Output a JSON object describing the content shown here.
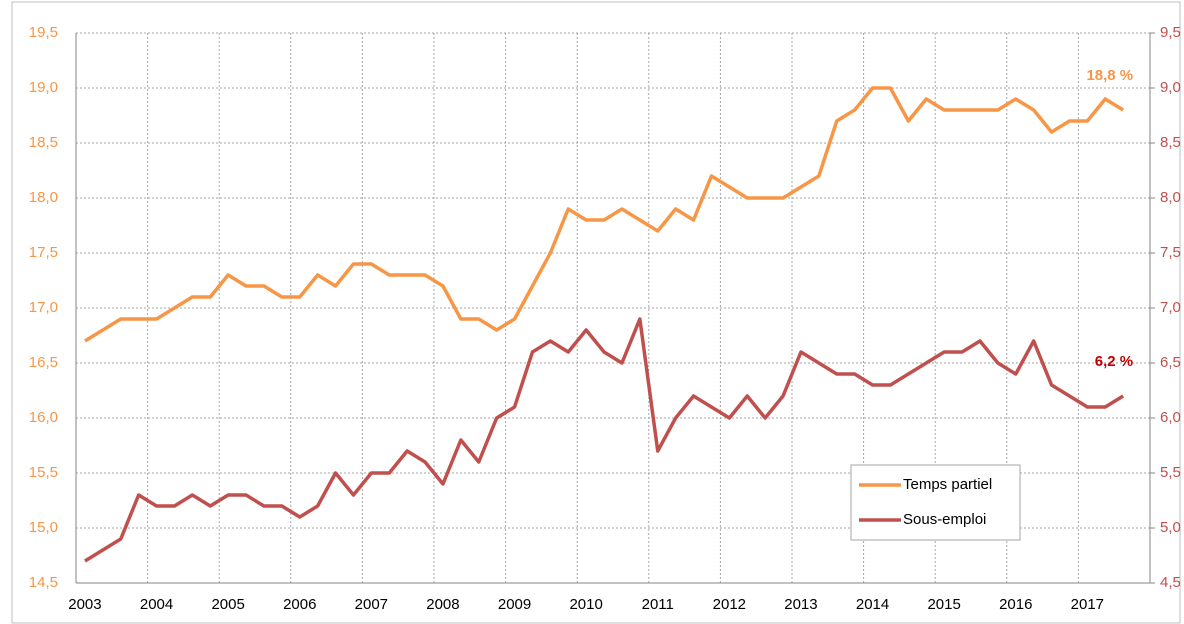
{
  "chart_data": {
    "type": "line",
    "categories": [
      "2003",
      null,
      null,
      null,
      "2004",
      null,
      null,
      null,
      "2005",
      null,
      null,
      null,
      "2006",
      null,
      null,
      null,
      "2007",
      null,
      null,
      null,
      "2008",
      null,
      null,
      null,
      "2009",
      null,
      null,
      null,
      "2010",
      null,
      null,
      null,
      "2011",
      null,
      null,
      null,
      "2012",
      null,
      null,
      null,
      "2013",
      null,
      null,
      null,
      "2014",
      null,
      null,
      null,
      "2015",
      null,
      null,
      null,
      "2016",
      null,
      null,
      null,
      "2017",
      null,
      null
    ],
    "series": [
      {
        "name": "Temps partiel",
        "color": "#f79646",
        "axis": "y",
        "values": [
          16.7,
          16.8,
          16.9,
          16.9,
          16.9,
          17.0,
          17.1,
          17.1,
          17.3,
          17.2,
          17.2,
          17.1,
          17.1,
          17.3,
          17.2,
          17.4,
          17.4,
          17.3,
          17.3,
          17.3,
          17.2,
          16.9,
          16.9,
          16.8,
          16.9,
          17.2,
          17.5,
          17.9,
          17.8,
          17.8,
          17.9,
          17.8,
          17.7,
          17.9,
          17.8,
          18.2,
          18.1,
          18.0,
          18.0,
          18.0,
          18.1,
          18.2,
          18.7,
          18.8,
          19.0,
          19.0,
          18.7,
          18.9,
          18.8,
          18.8,
          18.8,
          18.8,
          18.9,
          18.8,
          18.6,
          18.7,
          18.7,
          18.9,
          18.8
        ],
        "value_labels": [
          null,
          null,
          null,
          null,
          null,
          null,
          null,
          null,
          null,
          null,
          null,
          null,
          null,
          null,
          null,
          null,
          null,
          null,
          null,
          null,
          null,
          null,
          null,
          null,
          null,
          null,
          null,
          null,
          null,
          null,
          null,
          null,
          null,
          null,
          null,
          null,
          null,
          null,
          null,
          null,
          null,
          null,
          null,
          null,
          null,
          null,
          null,
          null,
          null,
          null,
          null,
          null,
          null,
          null,
          null,
          null,
          null,
          null,
          "18,8 %"
        ],
        "label_color": "#f79646"
      },
      {
        "name": "Sous-emploi",
        "color": "#c0504d",
        "axis": "y2",
        "values": [
          4.7,
          4.8,
          4.9,
          5.3,
          5.2,
          5.2,
          5.3,
          5.2,
          5.3,
          5.3,
          5.2,
          5.2,
          5.1,
          5.2,
          5.5,
          5.3,
          5.5,
          5.5,
          5.7,
          5.6,
          5.4,
          5.8,
          5.6,
          6.0,
          6.1,
          6.6,
          6.7,
          6.6,
          6.8,
          6.6,
          6.5,
          6.9,
          5.7,
          6.0,
          6.2,
          6.1,
          6.0,
          6.2,
          6.0,
          6.2,
          6.6,
          6.5,
          6.4,
          6.4,
          6.3,
          6.3,
          6.4,
          6.5,
          6.6,
          6.6,
          6.7,
          6.5,
          6.4,
          6.7,
          6.3,
          6.2,
          6.1,
          6.1,
          6.2
        ],
        "value_labels": [
          null,
          null,
          null,
          null,
          null,
          null,
          null,
          null,
          null,
          null,
          null,
          null,
          null,
          null,
          null,
          null,
          null,
          null,
          null,
          null,
          null,
          null,
          null,
          null,
          null,
          null,
          null,
          null,
          null,
          null,
          null,
          null,
          null,
          null,
          null,
          null,
          null,
          null,
          null,
          null,
          null,
          null,
          null,
          null,
          null,
          null,
          null,
          null,
          null,
          null,
          null,
          null,
          null,
          null,
          null,
          null,
          null,
          null,
          "6,2 %"
        ],
        "label_color": "#c00000"
      }
    ],
    "ylim": [
      14.5,
      19.5
    ],
    "yticks": [
      {
        "value": 14.5,
        "label": "14,5"
      },
      {
        "value": 15.0,
        "label": "15,0"
      },
      {
        "value": 15.5,
        "label": "15,5"
      },
      {
        "value": 16.0,
        "label": "16,0"
      },
      {
        "value": 16.5,
        "label": "16,5"
      },
      {
        "value": 17.0,
        "label": "17,0"
      },
      {
        "value": 17.5,
        "label": "17,5"
      },
      {
        "value": 18.0,
        "label": "18,0"
      },
      {
        "value": 18.5,
        "label": "18,5"
      },
      {
        "value": 19.0,
        "label": "19,0"
      },
      {
        "value": 19.5,
        "label": "19,5"
      }
    ],
    "y2lim": [
      4.5,
      9.5
    ],
    "y2ticks": [
      {
        "value": 4.5,
        "label": "4,5"
      },
      {
        "value": 5.0,
        "label": "5,0"
      },
      {
        "value": 5.5,
        "label": "5,5"
      },
      {
        "value": 6.0,
        "label": "6,0"
      },
      {
        "value": 6.5,
        "label": "6,5"
      },
      {
        "value": 7.0,
        "label": "7,0"
      },
      {
        "value": 7.5,
        "label": "7,5"
      },
      {
        "value": 8.0,
        "label": "8,0"
      },
      {
        "value": 8.5,
        "label": "8,5"
      },
      {
        "value": 9.0,
        "label": "9,0"
      },
      {
        "value": 9.5,
        "label": "9,5"
      }
    ],
    "ytick_color": "#f79646",
    "y2tick_color": "#c0504d",
    "grid": true,
    "legend": "lower right"
  }
}
